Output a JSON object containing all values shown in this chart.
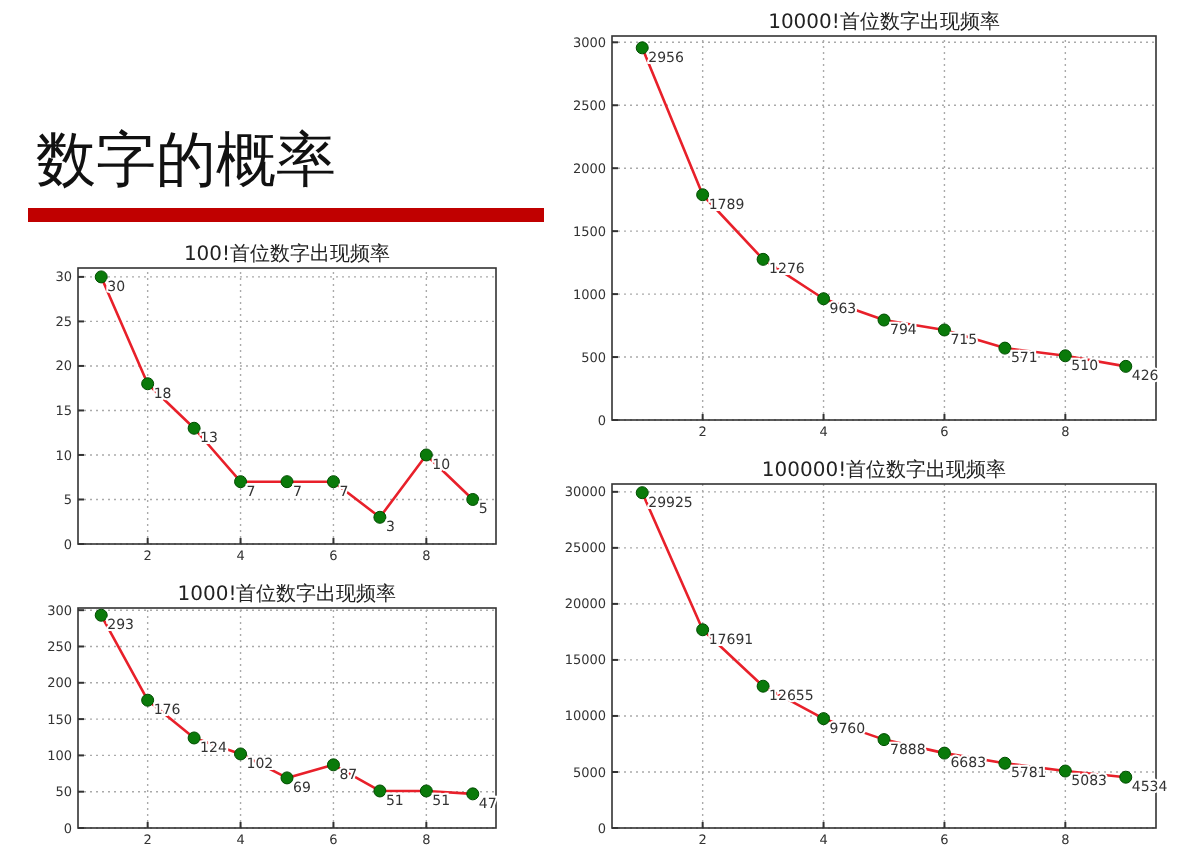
{
  "chart_data": [
    {
      "type": "other",
      "title": "数字的概率"
    },
    {
      "type": "line",
      "title": "100!首位数字出现频率",
      "x": [
        1,
        2,
        3,
        4,
        5,
        6,
        7,
        8,
        9
      ],
      "series": [
        {
          "color": "#e8202a",
          "values": [
            30,
            18,
            13,
            7,
            7,
            7,
            3,
            10,
            5
          ]
        }
      ],
      "xlim": [
        0.5,
        9.5
      ],
      "xticks": [
        2,
        4,
        6,
        8
      ],
      "ylim": [
        0,
        31
      ],
      "yticks": [
        0,
        5,
        10,
        15,
        20,
        25,
        30
      ],
      "grid": true,
      "marker": "circle",
      "data_labels": true
    },
    {
      "type": "line",
      "title": "1000!首位数字出现频率",
      "x": [
        1,
        2,
        3,
        4,
        5,
        6,
        7,
        8,
        9
      ],
      "series": [
        {
          "color": "#e8202a",
          "values": [
            293,
            176,
            124,
            102,
            69,
            87,
            51,
            51,
            47
          ]
        }
      ],
      "xlim": [
        0.5,
        9.5
      ],
      "xticks": [
        2,
        4,
        6,
        8
      ],
      "ylim": [
        0,
        303
      ],
      "yticks": [
        0,
        50,
        100,
        150,
        200,
        250,
        300
      ],
      "grid": true,
      "marker": "circle",
      "data_labels": true
    },
    {
      "type": "line",
      "title": "10000!首位数字出现频率",
      "x": [
        1,
        2,
        3,
        4,
        5,
        6,
        7,
        8,
        9
      ],
      "series": [
        {
          "color": "#e8202a",
          "values": [
            2956,
            1789,
            1276,
            963,
            794,
            715,
            571,
            510,
            426
          ]
        }
      ],
      "xlim": [
        0.5,
        9.5
      ],
      "xticks": [
        2,
        4,
        6,
        8
      ],
      "ylim": [
        0,
        3050
      ],
      "yticks": [
        0,
        500,
        1000,
        1500,
        2000,
        2500,
        3000
      ],
      "grid": true,
      "marker": "circle",
      "data_labels": true
    },
    {
      "type": "line",
      "title": "100000!首位数字出现频率",
      "x": [
        1,
        2,
        3,
        4,
        5,
        6,
        7,
        8,
        9
      ],
      "series": [
        {
          "color": "#e8202a",
          "values": [
            29925,
            17691,
            12655,
            9760,
            7888,
            6683,
            5781,
            5083,
            4534
          ]
        }
      ],
      "xlim": [
        0.5,
        9.5
      ],
      "xticks": [
        2,
        4,
        6,
        8
      ],
      "ylim": [
        0,
        30700
      ],
      "yticks": [
        0,
        5000,
        10000,
        15000,
        20000,
        25000,
        30000
      ],
      "grid": true,
      "marker": "circle",
      "data_labels": true
    }
  ]
}
